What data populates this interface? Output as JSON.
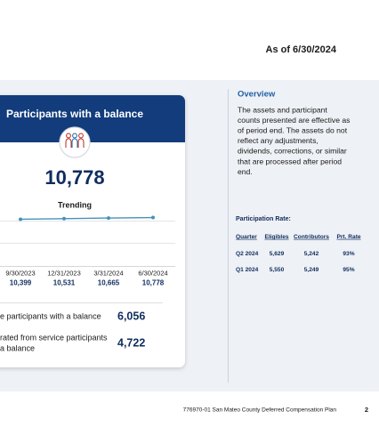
{
  "header": {
    "as_of": "As of 6/30/2024"
  },
  "card": {
    "title": "Participants with a balance",
    "total": "10,778",
    "trending": {
      "label": "Trending",
      "dates": [
        "9/30/2023",
        "12/31/2023",
        "3/31/2024",
        "6/30/2024"
      ],
      "values": [
        10399,
        10531,
        10665,
        10778
      ],
      "value_labels": [
        "10,399",
        "10,531",
        "10,665",
        "10,778"
      ],
      "color": "#4a90b8"
    },
    "stats": [
      {
        "label_lines": [
          "e participants with a balance"
        ],
        "value": "6,056"
      },
      {
        "label_lines": [
          "rated from service participants",
          "a balance"
        ],
        "value": "4,722"
      }
    ]
  },
  "overview": {
    "title": "Overview",
    "lines": [
      "The assets and participant",
      "counts presented are effective as",
      "of period end. The assets do not",
      "reflect any adjustments,",
      "dividends, corrections, or similar",
      "that are processed after period",
      "end."
    ],
    "participation_rate": {
      "title": "Participation Rate:",
      "columns": [
        "Quarter",
        "Eligibles",
        "Contributors",
        "Prt. Rate"
      ],
      "rows": [
        [
          "Q2 2024",
          "5,629",
          "5,242",
          "93%"
        ],
        [
          "Q1 2024",
          "5,550",
          "5,249",
          "95%"
        ]
      ]
    }
  },
  "footer": {
    "text": "776970-01 San Mateo County Deferred Compensation Plan",
    "page": "2"
  }
}
